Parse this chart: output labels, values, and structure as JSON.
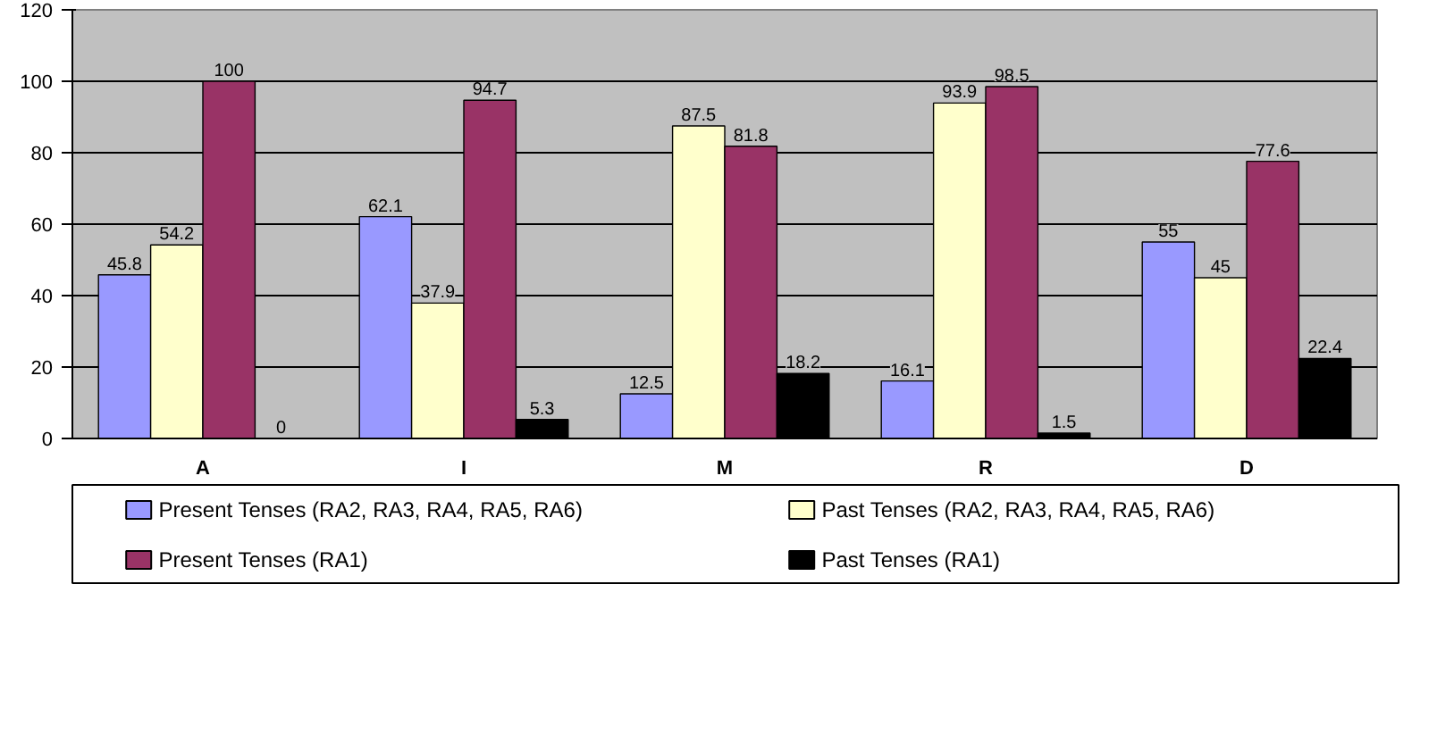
{
  "chart_data": {
    "type": "bar",
    "categories": [
      "A",
      "I",
      "M",
      "R",
      "D"
    ],
    "series": [
      {
        "name": "Present Tenses (RA2, RA3, RA4, RA5, RA6)",
        "color": "#9999ff",
        "values": [
          45.8,
          62.1,
          12.5,
          16.1,
          55
        ]
      },
      {
        "name": "Past Tenses  (RA2, RA3, RA4, RA5, RA6)",
        "color": "#ffffcc",
        "values": [
          54.2,
          37.9,
          87.5,
          93.9,
          45
        ]
      },
      {
        "name": "Present Tenses (RA1)",
        "color": "#993366",
        "values": [
          100,
          94.7,
          81.8,
          98.5,
          77.6
        ]
      },
      {
        "name": "Past Tenses (RA1)",
        "color": "#000000",
        "values": [
          0,
          5.3,
          18.2,
          1.5,
          22.4
        ]
      }
    ],
    "ylim": [
      0,
      120
    ],
    "yticks": [
      0,
      20,
      40,
      60,
      80,
      100,
      120
    ],
    "grid": "y",
    "legend": "bottom",
    "data_labels": true
  }
}
